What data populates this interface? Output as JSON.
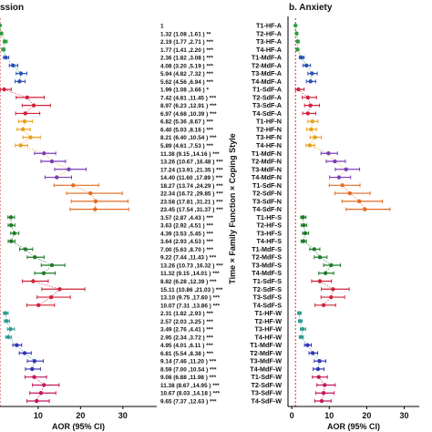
{
  "titles": {
    "left": "ssion",
    "right": "b. Anxiety"
  },
  "colors": {
    "HF": "#2e9e3e",
    "MdF": "#2b4fb8",
    "SdF": "#d0233b",
    "N_HF": "#e8a020",
    "N_MdF": "#7a3fb8",
    "N_SdF": "#e36b25",
    "S": "#1f7a2a",
    "W_HF": "#2a9d8f",
    "W_MdF": "#3333b3",
    "W_SdF": "#c2185b",
    "refline": "#cc3333",
    "axis": "#000000"
  },
  "chart_data": [
    {
      "type": "forest",
      "panel": "left",
      "title": "ssion",
      "xlabel": "AOR (95% CI)",
      "xticks": [
        10,
        20,
        30
      ],
      "xlim": [
        1,
        38
      ],
      "rows": [
        {
          "ci": "1",
          "sig": "",
          "aor": 1,
          "lo": 1,
          "hi": 1,
          "grp": "A",
          "c": "HF"
        },
        {
          "ci": "1.32 (1.08 ,1.61 )",
          "sig": "**",
          "aor": 1.32,
          "lo": 1.08,
          "hi": 1.61,
          "grp": "A",
          "c": "HF"
        },
        {
          "ci": "2.19 (1.77 ,2.71 )",
          "sig": "***",
          "aor": 2.19,
          "lo": 1.77,
          "hi": 2.71,
          "grp": "A",
          "c": "HF"
        },
        {
          "ci": "1.77 (1.41 ,2.20 )",
          "sig": "***",
          "aor": 1.77,
          "lo": 1.41,
          "hi": 2.2,
          "grp": "A",
          "c": "HF"
        },
        {
          "ci": "2.36 (1.82 ,3.08 )",
          "sig": "***",
          "aor": 2.36,
          "lo": 1.82,
          "hi": 3.08,
          "grp": "A",
          "c": "MdF"
        },
        {
          "ci": "4.08 (3.20 ,5.19 )",
          "sig": "***",
          "aor": 4.08,
          "lo": 3.2,
          "hi": 5.19,
          "grp": "A",
          "c": "MdF"
        },
        {
          "ci": "5.94 (4.82 ,7.32 )",
          "sig": "***",
          "aor": 5.94,
          "lo": 4.82,
          "hi": 7.32,
          "grp": "A",
          "c": "MdF"
        },
        {
          "ci": "5.62 (4.56 ,6.94 )",
          "sig": "***",
          "aor": 5.62,
          "lo": 4.56,
          "hi": 6.94,
          "grp": "A",
          "c": "MdF"
        },
        {
          "ci": "1.99 (1.08 ,3.66 )",
          "sig": "*",
          "aor": 1.99,
          "lo": 1.08,
          "hi": 3.66,
          "grp": "A2",
          "c": "SdF"
        },
        {
          "ci": "7.42 (4.81 ,11.45 )",
          "sig": "***",
          "aor": 7.42,
          "lo": 4.81,
          "hi": 11.45,
          "grp": "A2",
          "c": "SdF"
        },
        {
          "ci": "8.97 (6.23 ,12.91 )",
          "sig": "***",
          "aor": 8.97,
          "lo": 6.23,
          "hi": 12.91,
          "grp": "A2",
          "c": "SdF"
        },
        {
          "ci": "6.97 (4.68 ,10.39 )",
          "sig": "***",
          "aor": 6.97,
          "lo": 4.68,
          "hi": 10.39,
          "grp": "A2",
          "c": "SdF"
        },
        {
          "ci": "6.82 (5.36 ,8.67 )",
          "sig": "***",
          "aor": 6.82,
          "lo": 5.36,
          "hi": 8.67,
          "grp": "B",
          "c": "N_HF"
        },
        {
          "ci": "6.40 (5.03 ,8.16 )",
          "sig": "***",
          "aor": 6.4,
          "lo": 5.03,
          "hi": 8.16,
          "grp": "B",
          "c": "N_HF"
        },
        {
          "ci": "8.21 (6.40 ,10.54 )",
          "sig": "***",
          "aor": 8.21,
          "lo": 6.4,
          "hi": 10.54,
          "grp": "B",
          "c": "N_HF"
        },
        {
          "ci": "5.89 (4.61 ,7.53 )",
          "sig": "***",
          "aor": 5.89,
          "lo": 4.61,
          "hi": 7.53,
          "grp": "B",
          "c": "N_HF"
        },
        {
          "ci": "11.38 (9.15 ,14.16 )",
          "sig": "***",
          "aor": 11.38,
          "lo": 9.15,
          "hi": 14.16,
          "grp": "B",
          "c": "N_MdF"
        },
        {
          "ci": "13.26 (10.67 ,16.48 )",
          "sig": "***",
          "aor": 13.26,
          "lo": 10.67,
          "hi": 16.48,
          "grp": "B",
          "c": "N_MdF"
        },
        {
          "ci": "17.24 (13.91 ,21.35 )",
          "sig": "***",
          "aor": 17.24,
          "lo": 13.91,
          "hi": 21.35,
          "grp": "B",
          "c": "N_MdF"
        },
        {
          "ci": "14.40 (11.60 ,17.89 )",
          "sig": "***",
          "aor": 14.4,
          "lo": 11.6,
          "hi": 17.89,
          "grp": "B",
          "c": "N_MdF"
        },
        {
          "ci": "18.27 (13.74 ,24.29 )",
          "sig": "***",
          "aor": 18.27,
          "lo": 13.74,
          "hi": 24.29,
          "grp": "B2",
          "c": "N_SdF"
        },
        {
          "ci": "22.34 (16.72 ,29.85 )",
          "sig": "***",
          "aor": 22.34,
          "lo": 16.72,
          "hi": 29.85,
          "grp": "B2",
          "c": "N_SdF"
        },
        {
          "ci": "23.58 (17.81 ,31.21 )",
          "sig": "***",
          "aor": 23.58,
          "lo": 17.81,
          "hi": 31.21,
          "grp": "B2",
          "c": "N_SdF"
        },
        {
          "ci": "23.45 (17.54 ,31.37 )",
          "sig": "***",
          "aor": 23.45,
          "lo": 17.54,
          "hi": 31.37,
          "grp": "B2",
          "c": "N_SdF"
        },
        {
          "ci": "3.57 (2.87 ,4.43 )",
          "sig": "***",
          "aor": 3.57,
          "lo": 2.87,
          "hi": 4.43,
          "grp": "C",
          "c": "S"
        },
        {
          "ci": "3.63 (2.92 ,4.51 )",
          "sig": "***",
          "aor": 3.63,
          "lo": 2.92,
          "hi": 4.51,
          "grp": "C",
          "c": "S"
        },
        {
          "ci": "4.39 (3.53 ,5.45 )",
          "sig": "***",
          "aor": 4.39,
          "lo": 3.53,
          "hi": 5.45,
          "grp": "C",
          "c": "S"
        },
        {
          "ci": "3.64 (2.93 ,4.53 )",
          "sig": "***",
          "aor": 3.64,
          "lo": 2.93,
          "hi": 4.53,
          "grp": "C",
          "c": "S"
        },
        {
          "ci": "7.00 (5.63 ,8.70 )",
          "sig": "***",
          "aor": 7.0,
          "lo": 5.63,
          "hi": 8.7,
          "grp": "C",
          "c": "S"
        },
        {
          "ci": "9.22 (7.44 ,11.43 )",
          "sig": "***",
          "aor": 9.22,
          "lo": 7.44,
          "hi": 11.43,
          "grp": "C",
          "c": "S"
        },
        {
          "ci": "13.26 (10.73 ,16.32 )",
          "sig": "***",
          "aor": 13.26,
          "lo": 10.73,
          "hi": 16.32,
          "grp": "C",
          "c": "S"
        },
        {
          "ci": "11.32 (9.15 ,14.01 )",
          "sig": "***",
          "aor": 11.32,
          "lo": 9.15,
          "hi": 14.01,
          "grp": "C",
          "c": "S"
        },
        {
          "ci": "8.82 (6.28 ,12.39 )",
          "sig": "***",
          "aor": 8.82,
          "lo": 6.28,
          "hi": 12.39,
          "grp": "C2",
          "c": "SdF"
        },
        {
          "ci": "15.11 (10.86 ,21.03 )",
          "sig": "***",
          "aor": 15.11,
          "lo": 10.86,
          "hi": 21.03,
          "grp": "C2",
          "c": "SdF"
        },
        {
          "ci": "13.10 (9.75 ,17.60 )",
          "sig": "***",
          "aor": 13.1,
          "lo": 9.75,
          "hi": 17.6,
          "grp": "C2",
          "c": "SdF"
        },
        {
          "ci": "10.07 (7.31 ,13.86 )",
          "sig": "***",
          "aor": 10.07,
          "lo": 7.31,
          "hi": 13.86,
          "grp": "C2",
          "c": "SdF"
        },
        {
          "ci": "2.31 (1.82 ,2.93 )",
          "sig": "***",
          "aor": 2.31,
          "lo": 1.82,
          "hi": 2.93,
          "grp": "D",
          "c": "W_HF"
        },
        {
          "ci": "2.57 (2.03 ,3.25 )",
          "sig": "***",
          "aor": 2.57,
          "lo": 2.03,
          "hi": 3.25,
          "grp": "D",
          "c": "W_HF"
        },
        {
          "ci": "3.49 (2.76 ,4.41 )",
          "sig": "***",
          "aor": 3.49,
          "lo": 2.76,
          "hi": 4.41,
          "grp": "D",
          "c": "W_HF"
        },
        {
          "ci": "2.95 (2.34 ,3.72 )",
          "sig": "***",
          "aor": 2.95,
          "lo": 2.34,
          "hi": 3.72,
          "grp": "D",
          "c": "W_HF"
        },
        {
          "ci": "4.95 (4.01 ,6.11 )",
          "sig": "***",
          "aor": 4.95,
          "lo": 4.01,
          "hi": 6.11,
          "grp": "D",
          "c": "W_MdF"
        },
        {
          "ci": "6.81 (5.54 ,8.38 )",
          "sig": "***",
          "aor": 6.81,
          "lo": 5.54,
          "hi": 8.38,
          "grp": "D",
          "c": "W_MdF"
        },
        {
          "ci": "9.14 (7.46 ,11.20 )",
          "sig": "***",
          "aor": 9.14,
          "lo": 7.46,
          "hi": 11.2,
          "grp": "D",
          "c": "W_MdF"
        },
        {
          "ci": "8.59 (7.00 ,10.54 )",
          "sig": "***",
          "aor": 8.59,
          "lo": 7.0,
          "hi": 10.54,
          "grp": "D",
          "c": "W_MdF"
        },
        {
          "ci": "9.08 (6.88 ,11.98 )",
          "sig": "***",
          "aor": 9.08,
          "lo": 6.88,
          "hi": 11.98,
          "grp": "D2",
          "c": "W_SdF"
        },
        {
          "ci": "11.38 (8.67 ,14.95 )",
          "sig": "***",
          "aor": 11.38,
          "lo": 8.67,
          "hi": 14.95,
          "grp": "D2",
          "c": "W_SdF"
        },
        {
          "ci": "10.67 (8.03 ,14.18 )",
          "sig": "***",
          "aor": 10.67,
          "lo": 8.03,
          "hi": 14.18,
          "grp": "D2",
          "c": "W_SdF"
        },
        {
          "ci": "9.65 (7.37 ,12.63 )",
          "sig": "***",
          "aor": 9.65,
          "lo": 7.37,
          "hi": 12.63,
          "grp": "D2",
          "c": "W_SdF"
        }
      ]
    },
    {
      "type": "forest",
      "panel": "right",
      "title": "b. Anxiety",
      "xlabel": "AOR (95% CI)",
      "ylabel": "Time × Family Function × Coping Style",
      "xticks": [
        0,
        10,
        20,
        30
      ],
      "xlim": [
        -1,
        34
      ],
      "rows": [
        {
          "label": "T1-HF-A",
          "aor": 1,
          "lo": 1,
          "hi": 1,
          "grp": "A",
          "c": "HF"
        },
        {
          "label": "T2-HF-A",
          "aor": 1.3,
          "lo": 1.05,
          "hi": 1.6,
          "grp": "A",
          "c": "HF"
        },
        {
          "label": "T3-HF-A",
          "aor": 1.6,
          "lo": 1.3,
          "hi": 2.0,
          "grp": "A",
          "c": "HF"
        },
        {
          "label": "T4-HF-A",
          "aor": 1.5,
          "lo": 1.2,
          "hi": 1.9,
          "grp": "A",
          "c": "HF"
        },
        {
          "label": "T1-MdF-A",
          "aor": 2.6,
          "lo": 2.0,
          "hi": 3.3,
          "grp": "A",
          "c": "MdF"
        },
        {
          "label": "T2-MdF-A",
          "aor": 3.9,
          "lo": 3.0,
          "hi": 5.0,
          "grp": "A",
          "c": "MdF"
        },
        {
          "label": "T3-MdF-A",
          "aor": 5.4,
          "lo": 4.3,
          "hi": 6.8,
          "grp": "A",
          "c": "MdF"
        },
        {
          "label": "T4-MdF-A",
          "aor": 5.0,
          "lo": 3.9,
          "hi": 6.4,
          "grp": "A",
          "c": "MdF"
        },
        {
          "label": "T1-SdF-A",
          "aor": 1.8,
          "lo": 1.0,
          "hi": 3.3,
          "grp": "A2",
          "c": "SdF"
        },
        {
          "label": "T2-SdF-A",
          "aor": 4.3,
          "lo": 2.8,
          "hi": 6.6,
          "grp": "A2",
          "c": "SdF"
        },
        {
          "label": "T3-SdF-A",
          "aor": 5.0,
          "lo": 3.4,
          "hi": 7.4,
          "grp": "A2",
          "c": "SdF"
        },
        {
          "label": "T4-SdF-A",
          "aor": 4.3,
          "lo": 2.9,
          "hi": 6.4,
          "grp": "A2",
          "c": "SdF"
        },
        {
          "label": "T1-HF-N",
          "aor": 5.5,
          "lo": 4.3,
          "hi": 7.0,
          "grp": "B",
          "c": "N_HF"
        },
        {
          "label": "T2-HF-N",
          "aor": 5.2,
          "lo": 4.0,
          "hi": 6.6,
          "grp": "B",
          "c": "N_HF"
        },
        {
          "label": "T3-HF-N",
          "aor": 6.2,
          "lo": 4.9,
          "hi": 7.9,
          "grp": "B",
          "c": "N_HF"
        },
        {
          "label": "T4-HF-N",
          "aor": 4.8,
          "lo": 3.8,
          "hi": 6.1,
          "grp": "B",
          "c": "N_HF"
        },
        {
          "label": "T1-MdF-N",
          "aor": 9.8,
          "lo": 7.8,
          "hi": 12.2,
          "grp": "B",
          "c": "N_MdF"
        },
        {
          "label": "T2-MdF-N",
          "aor": 11.5,
          "lo": 9.2,
          "hi": 14.3,
          "grp": "B",
          "c": "N_MdF"
        },
        {
          "label": "T3-MdF-N",
          "aor": 14.5,
          "lo": 11.6,
          "hi": 18.1,
          "grp": "B",
          "c": "N_MdF"
        },
        {
          "label": "T4-MdF-N",
          "aor": 12.6,
          "lo": 10.1,
          "hi": 15.7,
          "grp": "B",
          "c": "N_MdF"
        },
        {
          "label": "T1-SdF-N",
          "aor": 13.5,
          "lo": 10.0,
          "hi": 18.2,
          "grp": "B2",
          "c": "N_SdF"
        },
        {
          "label": "T2-SdF-N",
          "aor": 15.5,
          "lo": 11.5,
          "hi": 20.9,
          "grp": "B2",
          "c": "N_SdF"
        },
        {
          "label": "T3-SdF-N",
          "aor": 18.0,
          "lo": 13.4,
          "hi": 24.2,
          "grp": "B2",
          "c": "N_SdF"
        },
        {
          "label": "T4-SdF-N",
          "aor": 19.5,
          "lo": 14.5,
          "hi": 26.2,
          "grp": "B2",
          "c": "N_SdF"
        },
        {
          "label": "T1-HF-S",
          "aor": 3.0,
          "lo": 2.4,
          "hi": 3.8,
          "grp": "C",
          "c": "S"
        },
        {
          "label": "T2-HF-S",
          "aor": 3.2,
          "lo": 2.5,
          "hi": 4.0,
          "grp": "C",
          "c": "S"
        },
        {
          "label": "T3-HF-S",
          "aor": 3.6,
          "lo": 2.9,
          "hi": 4.5,
          "grp": "C",
          "c": "S"
        },
        {
          "label": "T4-HF-S",
          "aor": 3.1,
          "lo": 2.5,
          "hi": 3.9,
          "grp": "C",
          "c": "S"
        },
        {
          "label": "T1-MdF-S",
          "aor": 6.0,
          "lo": 4.8,
          "hi": 7.5,
          "grp": "C",
          "c": "S"
        },
        {
          "label": "T2-MdF-S",
          "aor": 7.5,
          "lo": 6.0,
          "hi": 9.4,
          "grp": "C",
          "c": "S"
        },
        {
          "label": "T3-MdF-S",
          "aor": 10.5,
          "lo": 8.5,
          "hi": 13.0,
          "grp": "C",
          "c": "S"
        },
        {
          "label": "T4-MdF-S",
          "aor": 9.0,
          "lo": 7.2,
          "hi": 11.2,
          "grp": "C",
          "c": "S"
        },
        {
          "label": "T1-SdF-S",
          "aor": 7.5,
          "lo": 5.3,
          "hi": 10.6,
          "grp": "C2",
          "c": "SdF"
        },
        {
          "label": "T2-SdF-S",
          "aor": 11.0,
          "lo": 7.9,
          "hi": 15.3,
          "grp": "C2",
          "c": "SdF"
        },
        {
          "label": "T3-SdF-S",
          "aor": 10.5,
          "lo": 7.8,
          "hi": 14.1,
          "grp": "C2",
          "c": "SdF"
        },
        {
          "label": "T4-SdF-S",
          "aor": 8.5,
          "lo": 6.2,
          "hi": 11.7,
          "grp": "C2",
          "c": "SdF"
        },
        {
          "label": "T1-HF-W",
          "aor": 2.0,
          "lo": 1.6,
          "hi": 2.5,
          "grp": "D",
          "c": "W_HF"
        },
        {
          "label": "T2-HF-W",
          "aor": 2.2,
          "lo": 1.8,
          "hi": 2.8,
          "grp": "D",
          "c": "W_HF"
        },
        {
          "label": "T3-HF-W",
          "aor": 2.9,
          "lo": 2.3,
          "hi": 3.7,
          "grp": "D",
          "c": "W_HF"
        },
        {
          "label": "T4-HF-W",
          "aor": 2.5,
          "lo": 2.0,
          "hi": 3.1,
          "grp": "D",
          "c": "W_HF"
        },
        {
          "label": "T1-MdF-W",
          "aor": 4.2,
          "lo": 3.4,
          "hi": 5.2,
          "grp": "D",
          "c": "W_MdF"
        },
        {
          "label": "T2-MdF-W",
          "aor": 5.6,
          "lo": 4.6,
          "hi": 6.9,
          "grp": "D",
          "c": "W_MdF"
        },
        {
          "label": "T3-MdF-W",
          "aor": 7.4,
          "lo": 6.0,
          "hi": 9.1,
          "grp": "D",
          "c": "W_MdF"
        },
        {
          "label": "T4-MdF-W",
          "aor": 7.0,
          "lo": 5.7,
          "hi": 8.6,
          "grp": "D",
          "c": "W_MdF"
        },
        {
          "label": "T1-SdF-W",
          "aor": 7.2,
          "lo": 5.5,
          "hi": 9.5,
          "grp": "D2",
          "c": "W_SdF"
        },
        {
          "label": "T2-SdF-W",
          "aor": 8.8,
          "lo": 6.7,
          "hi": 11.6,
          "grp": "D2",
          "c": "W_SdF"
        },
        {
          "label": "T3-SdF-W",
          "aor": 8.5,
          "lo": 6.4,
          "hi": 11.3,
          "grp": "D2",
          "c": "W_SdF"
        },
        {
          "label": "T4-SdF-W",
          "aor": 8.0,
          "lo": 6.1,
          "hi": 10.5,
          "grp": "D2",
          "c": "W_SdF"
        }
      ]
    }
  ]
}
